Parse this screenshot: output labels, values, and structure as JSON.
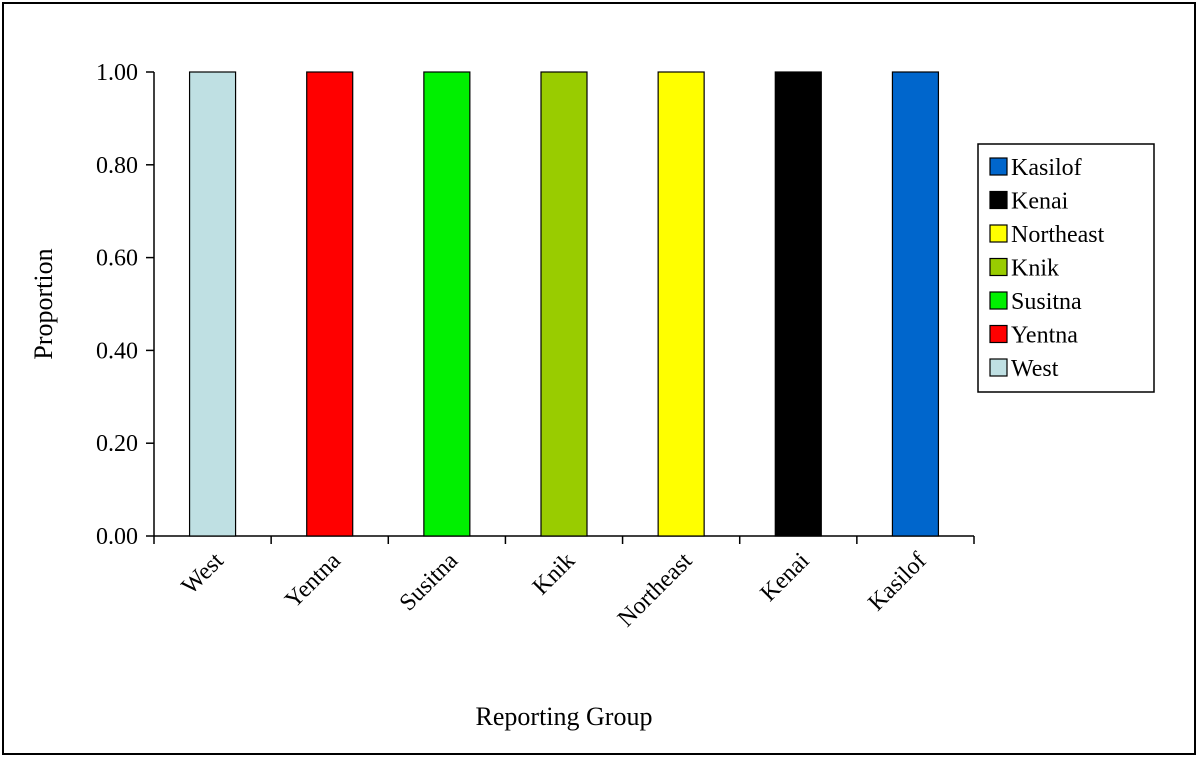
{
  "chart_data": {
    "type": "bar",
    "title": "",
    "xlabel": "Reporting Group",
    "ylabel": "Proportion",
    "ylim": [
      0,
      1
    ],
    "yticks": [
      "0.00",
      "0.20",
      "0.40",
      "0.60",
      "0.80",
      "1.00"
    ],
    "ytick_values": [
      0,
      0.2,
      0.4,
      0.6,
      0.8,
      1.0
    ],
    "categories": [
      "West",
      "Yentna",
      "Susitna",
      "Knik",
      "Northeast",
      "Kenai",
      "Kasilof"
    ],
    "values": [
      1.0,
      1.0,
      1.0,
      1.0,
      1.0,
      1.0,
      1.0
    ],
    "colors": [
      "#bfe0e3",
      "#ff0000",
      "#00f000",
      "#99cc00",
      "#ffff00",
      "#000000",
      "#0066cc"
    ],
    "grid": false,
    "legend": {
      "placement": "right",
      "entries": [
        {
          "label": "Kasilof",
          "color": "#0066cc"
        },
        {
          "label": "Kenai",
          "color": "#000000"
        },
        {
          "label": "Northeast",
          "color": "#ffff00"
        },
        {
          "label": "Knik",
          "color": "#99cc00"
        },
        {
          "label": "Susitna",
          "color": "#00f000"
        },
        {
          "label": "Yentna",
          "color": "#ff0000"
        },
        {
          "label": "West",
          "color": "#bfe0e3"
        }
      ]
    }
  }
}
